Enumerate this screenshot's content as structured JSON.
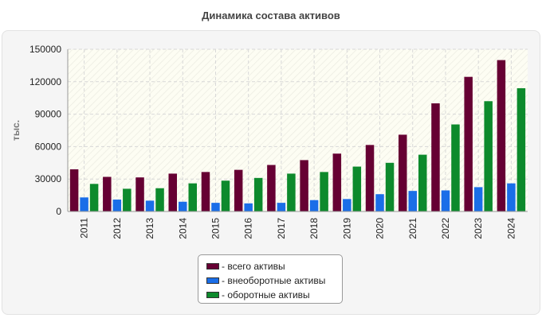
{
  "chart_data": {
    "type": "bar",
    "title": "Динамика состава активов",
    "ylabel": "тыс.",
    "xlabel": "",
    "ylim": [
      0,
      150000
    ],
    "yticks": [
      "0",
      "30000",
      "60000",
      "90000",
      "120000",
      "150000"
    ],
    "ytick_values": [
      0,
      30000,
      60000,
      90000,
      120000,
      150000
    ],
    "categories": [
      "2011",
      "2012",
      "2013",
      "2014",
      "2015",
      "2016",
      "2017",
      "2018",
      "2019",
      "2020",
      "2021",
      "2022",
      "2023",
      "2024"
    ],
    "series": [
      {
        "name": "- всего активы",
        "color": "#660033",
        "values": [
          39000,
          32000,
          31500,
          35000,
          36500,
          38500,
          43000,
          47500,
          53500,
          61500,
          71000,
          100000,
          124500,
          140000
        ]
      },
      {
        "name": "- внеоборотные активы",
        "color": "#1a6ee8",
        "values": [
          13000,
          11000,
          10000,
          9000,
          8000,
          7500,
          8000,
          10500,
          11500,
          16000,
          19000,
          19500,
          22500,
          26000
        ]
      },
      {
        "name": "- оборотные активы",
        "color": "#0d8a2c",
        "values": [
          25500,
          21000,
          21500,
          26000,
          28500,
          31000,
          35000,
          36500,
          41500,
          45000,
          52500,
          80500,
          102000,
          114000
        ]
      }
    ]
  }
}
